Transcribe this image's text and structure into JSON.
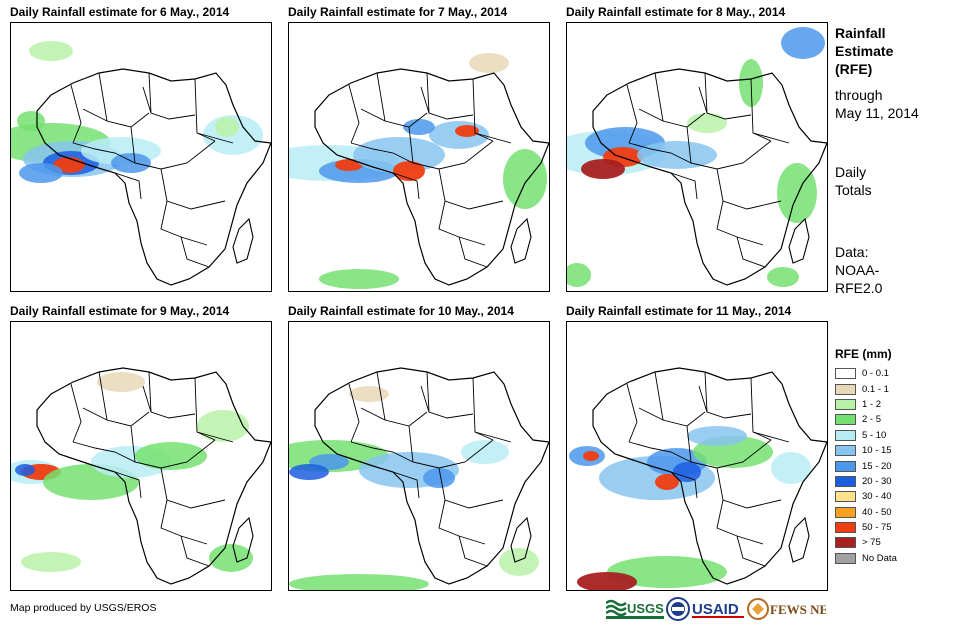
{
  "panels": [
    {
      "title": "Daily Rainfall estimate for 6 May., 2014"
    },
    {
      "title": "Daily Rainfall estimate for 7 May., 2014"
    },
    {
      "title": "Daily Rainfall estimate for 8 May., 2014"
    },
    {
      "title": "Daily Rainfall estimate for 9 May., 2014"
    },
    {
      "title": "Daily Rainfall estimate for 10 May., 2014"
    },
    {
      "title": "Daily Rainfall estimate for 11 May., 2014"
    }
  ],
  "sidebar": {
    "title_line1": "Rainfall",
    "title_line2": "Estimate",
    "title_line3": "(RFE)",
    "through_line1": "through",
    "through_line2": "May 11, 2014",
    "daily_line1": "Daily",
    "daily_line2": "Totals",
    "data_line1": "Data:",
    "data_line2": "NOAA-",
    "data_line3": "RFE2.0"
  },
  "legend": {
    "title": "RFE (mm)",
    "items": [
      {
        "label": "0 - 0.1",
        "color": "#ffffff"
      },
      {
        "label": "0.1 - 1",
        "color": "#e8d8b8"
      },
      {
        "label": "1 - 2",
        "color": "#b8f2a8"
      },
      {
        "label": "2 - 5",
        "color": "#74e070"
      },
      {
        "label": "5 - 10",
        "color": "#b8ecf4"
      },
      {
        "label": "10 - 15",
        "color": "#88c4f0"
      },
      {
        "label": "15 - 20",
        "color": "#4c98ec"
      },
      {
        "label": "20 - 30",
        "color": "#1c5ee0"
      },
      {
        "label": "30 - 40",
        "color": "#fce28c"
      },
      {
        "label": "40 - 50",
        "color": "#f8a020"
      },
      {
        "label": "50 - 75",
        "color": "#f03c10"
      },
      {
        "label": "> 75",
        "color": "#a82020"
      },
      {
        "label": "No Data",
        "color": "#a0a0a0"
      }
    ]
  },
  "footer": {
    "credit": "Map produced by USGS/EROS",
    "logo_usgs": "USGS",
    "logo_usaid": "USAID",
    "logo_fews": "FEWS NET"
  }
}
